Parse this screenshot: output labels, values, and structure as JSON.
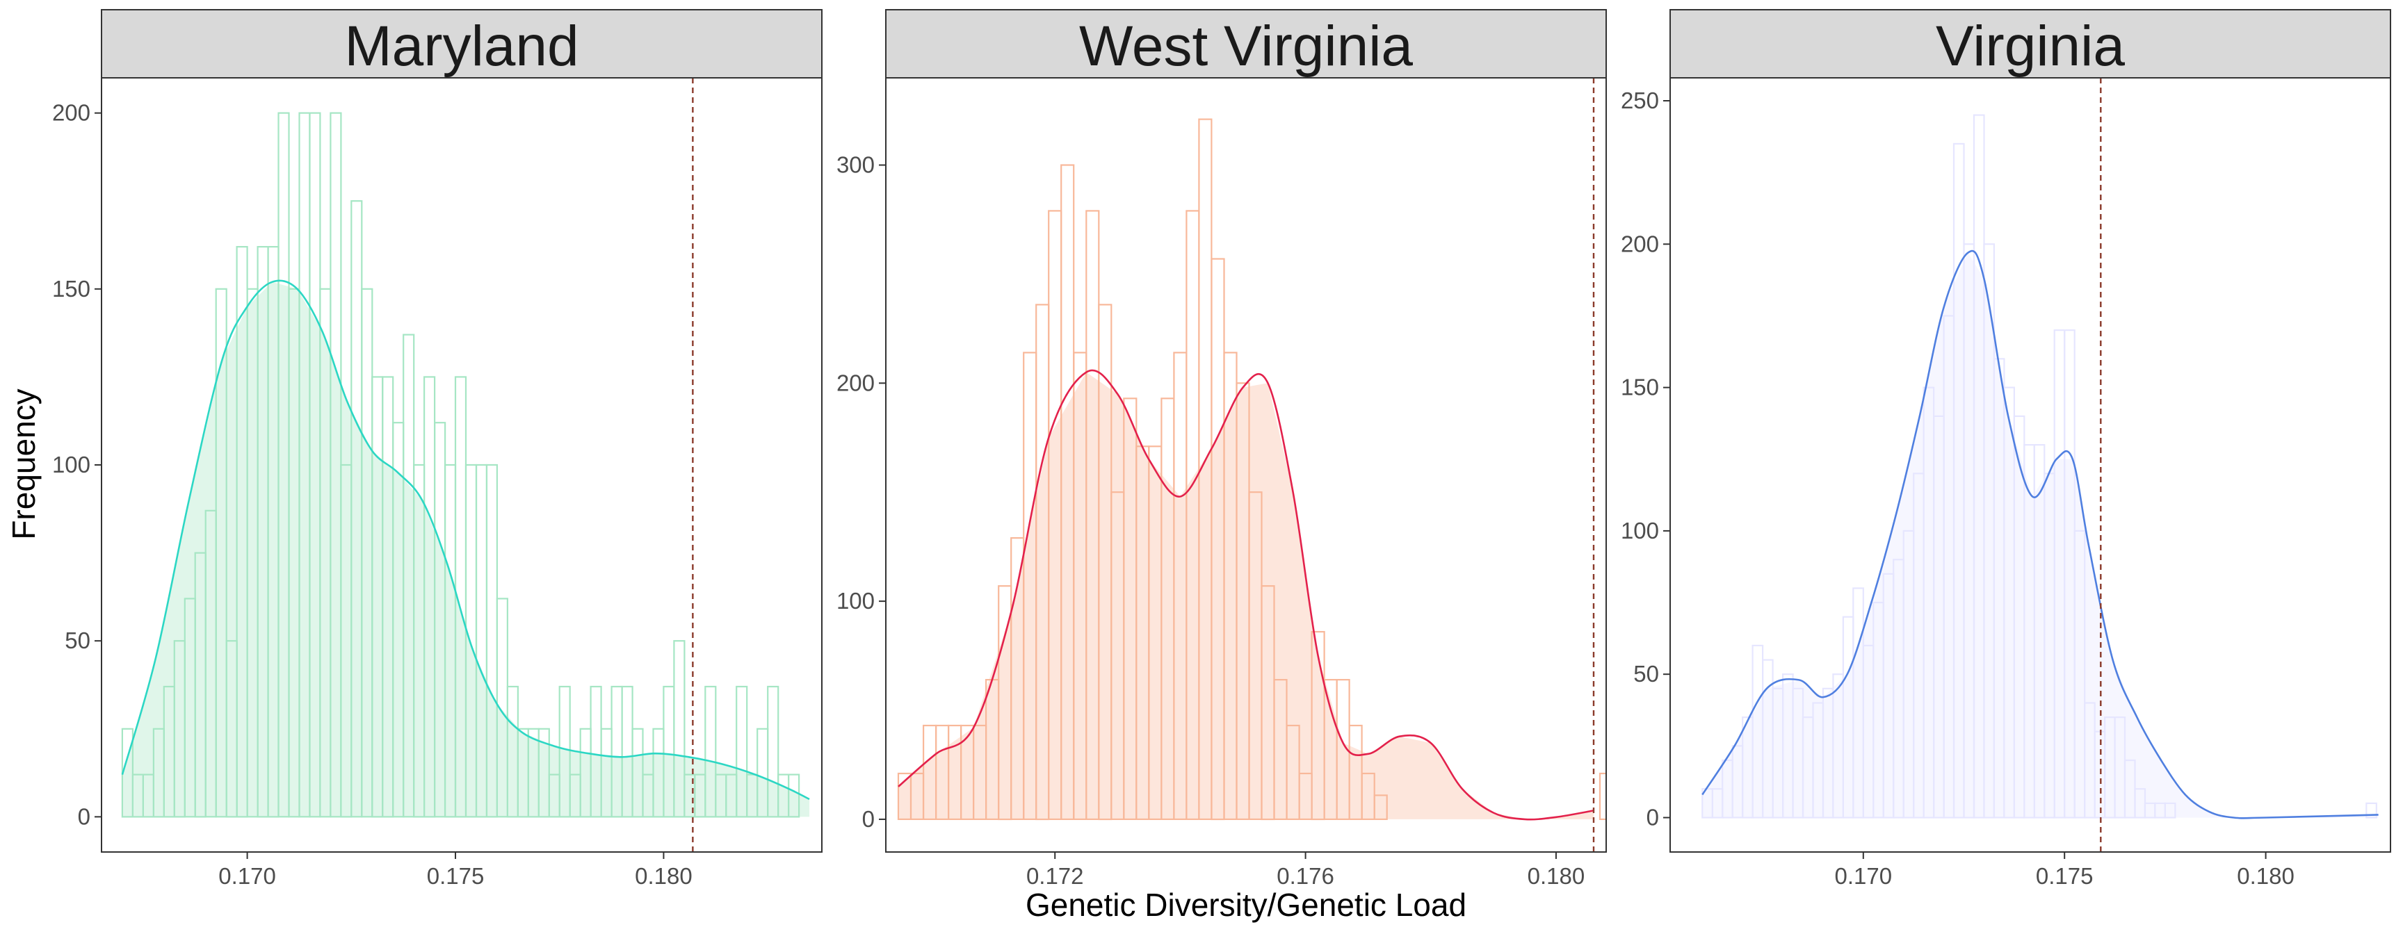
{
  "axes": {
    "xlabel": "Genetic Diversity/Genetic Load",
    "ylabel": "Frequency"
  },
  "chart_data": [
    {
      "type": "histogram",
      "title": "Maryland",
      "xlim": [
        0.1665,
        0.1838
      ],
      "ylim": [
        -10,
        210
      ],
      "xticks": [
        0.17,
        0.175,
        0.18
      ],
      "xtick_labels": [
        "0.170",
        "0.175",
        "0.180"
      ],
      "yticks": [
        0,
        50,
        100,
        150,
        200
      ],
      "bin_start": 0.167,
      "bin_width": 0.00025,
      "counts": [
        25,
        12,
        12,
        25,
        37,
        50,
        62,
        75,
        87,
        150,
        50,
        162,
        150,
        162,
        162,
        200,
        150,
        200,
        200,
        150,
        200,
        100,
        175,
        150,
        125,
        125,
        112,
        137,
        100,
        125,
        112,
        100,
        125,
        100,
        100,
        100,
        62,
        37,
        25,
        25,
        25,
        12,
        37,
        12,
        25,
        37,
        25,
        37,
        37,
        25,
        12,
        25,
        37,
        50,
        12,
        12,
        37,
        12,
        12,
        37,
        12,
        25,
        37,
        12,
        12
      ],
      "density_x": [
        0.167,
        0.1678,
        0.1686,
        0.1694,
        0.17,
        0.1706,
        0.1712,
        0.1718,
        0.1724,
        0.173,
        0.1736,
        0.1742,
        0.1748,
        0.1754,
        0.176,
        0.1766,
        0.1774,
        0.1782,
        0.179,
        0.1798,
        0.1806,
        0.1814,
        0.1822,
        0.183,
        0.1835
      ],
      "density_y": [
        12,
        45,
        90,
        130,
        145,
        152,
        150,
        138,
        118,
        104,
        98,
        90,
        72,
        48,
        32,
        24,
        20,
        18,
        17,
        18,
        17,
        15,
        12,
        8,
        5
      ],
      "fill": "#a6e6c4",
      "curve_color": "#2cd7c4",
      "vline": 0.1807,
      "vline_color": "#8b3a2b"
    },
    {
      "type": "histogram",
      "title": "West Virginia",
      "xlim": [
        0.1693,
        0.1808
      ],
      "ylim": [
        -15,
        340
      ],
      "xticks": [
        0.172,
        0.176,
        0.18
      ],
      "xtick_labels": [
        "0.172",
        "0.176",
        "0.180"
      ],
      "yticks": [
        0,
        100,
        200,
        300
      ],
      "bin_start": 0.1695,
      "bin_width": 0.0002,
      "counts": [
        21,
        21,
        43,
        43,
        43,
        43,
        43,
        64,
        107,
        129,
        214,
        236,
        279,
        300,
        214,
        279,
        236,
        150,
        193,
        171,
        171,
        193,
        214,
        279,
        321,
        257,
        214,
        200,
        150,
        107,
        64,
        43,
        21,
        86,
        64,
        64,
        43,
        21,
        11,
        0,
        0,
        0,
        0,
        0,
        0,
        0,
        0,
        0,
        0,
        0,
        0,
        0,
        0,
        0,
        0,
        0,
        21
      ],
      "density_x": [
        0.1695,
        0.1701,
        0.1707,
        0.1713,
        0.1719,
        0.1725,
        0.173,
        0.1735,
        0.174,
        0.1745,
        0.175,
        0.1754,
        0.1758,
        0.1762,
        0.1766,
        0.177,
        0.1775,
        0.178,
        0.1785,
        0.179,
        0.1795,
        0.18,
        0.1806
      ],
      "density_y": [
        15,
        30,
        42,
        95,
        175,
        205,
        195,
        165,
        148,
        170,
        198,
        200,
        150,
        75,
        35,
        30,
        38,
        35,
        14,
        3,
        0,
        1,
        4
      ],
      "fill": "#f8b89a",
      "curve_color": "#e3214b",
      "vline": 0.1806,
      "vline_color": "#8b3a2b"
    },
    {
      "type": "histogram",
      "title": "Virginia",
      "xlim": [
        0.1652,
        0.1831
      ],
      "ylim": [
        -12,
        258
      ],
      "xticks": [
        0.17,
        0.175,
        0.18
      ],
      "xtick_labels": [
        "0.170",
        "0.175",
        "0.180"
      ],
      "yticks": [
        0,
        50,
        100,
        150,
        200,
        250
      ],
      "bin_start": 0.166,
      "bin_width": 0.00025,
      "counts": [
        10,
        10,
        20,
        25,
        35,
        60,
        55,
        45,
        50,
        45,
        35,
        40,
        45,
        50,
        70,
        80,
        60,
        75,
        85,
        90,
        100,
        120,
        150,
        140,
        175,
        235,
        200,
        245,
        200,
        160,
        150,
        140,
        130,
        130,
        120,
        170,
        170,
        100,
        40,
        30,
        35,
        35,
        20,
        10,
        5,
        5,
        5,
        0,
        0,
        0,
        0,
        0,
        0,
        0,
        0,
        0,
        0,
        0,
        0,
        0,
        0,
        0,
        0,
        0,
        0,
        0,
        5
      ],
      "density_x": [
        0.166,
        0.1668,
        0.1676,
        0.1684,
        0.169,
        0.1696,
        0.1702,
        0.1708,
        0.1714,
        0.172,
        0.1726,
        0.173,
        0.1736,
        0.1742,
        0.1748,
        0.1752,
        0.1756,
        0.1762,
        0.1768,
        0.1774,
        0.178,
        0.1786,
        0.1792,
        0.18,
        0.1828
      ],
      "density_y": [
        8,
        25,
        45,
        48,
        42,
        50,
        75,
        105,
        140,
        178,
        197,
        188,
        140,
        112,
        125,
        125,
        95,
        55,
        35,
        20,
        8,
        2,
        0,
        0,
        1
      ],
      "fill": "#e6e6ff",
      "curve_color": "#4f7fe0",
      "vline": 0.1759,
      "vline_color": "#8b3a2b"
    }
  ]
}
